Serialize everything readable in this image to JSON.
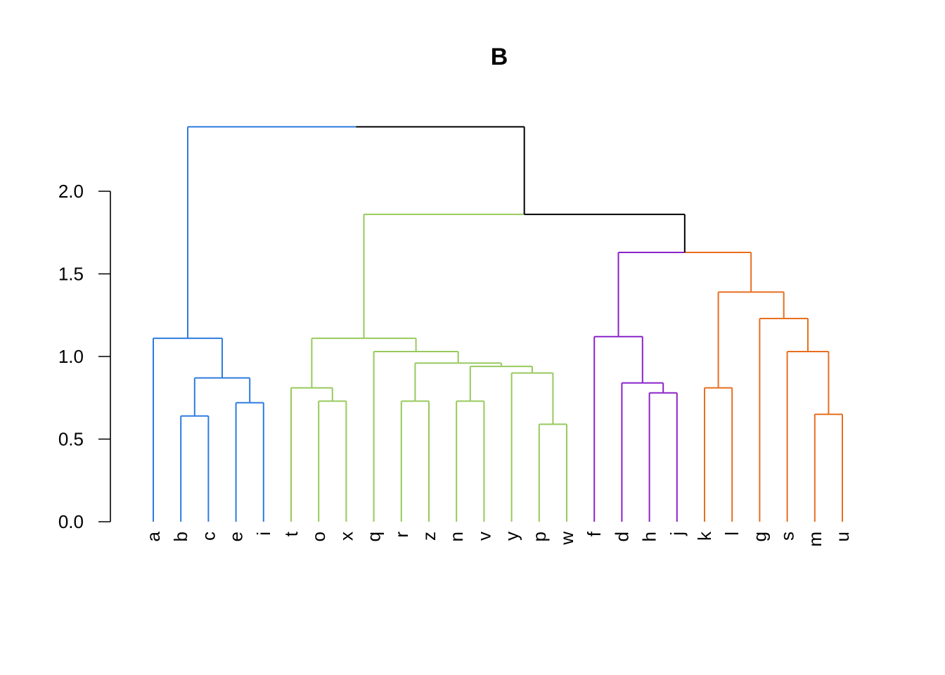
{
  "chart_data": {
    "type": "dendrogram",
    "title": "B",
    "xlabel": "",
    "ylabel": "",
    "ylim": [
      0,
      2.4
    ],
    "yticks": [
      0.0,
      0.5,
      1.0,
      1.5,
      2.0
    ],
    "ytick_labels": [
      "0.0",
      "0.5",
      "1.0",
      "1.5",
      "2.0"
    ],
    "leaves": [
      "a",
      "b",
      "c",
      "e",
      "i",
      "t",
      "o",
      "x",
      "q",
      "r",
      "z",
      "n",
      "v",
      "y",
      "p",
      "w",
      "f",
      "d",
      "h",
      "j",
      "k",
      "l",
      "g",
      "s",
      "m",
      "u"
    ],
    "colors": {
      "blue": "#2E7BE0",
      "green": "#98C95C",
      "purple": "#8A23C9",
      "orange": "#E86E1E",
      "root": "#000000"
    },
    "merges": [
      {
        "id": "n1",
        "left": "b",
        "right": "c",
        "height": 0.64,
        "color": "blue"
      },
      {
        "id": "n2",
        "left": "e",
        "right": "i",
        "height": 0.72,
        "color": "blue"
      },
      {
        "id": "n3",
        "left": "n1",
        "right": "n2",
        "height": 0.87,
        "color": "blue"
      },
      {
        "id": "n4",
        "left": "a",
        "right": "n3",
        "height": 1.11,
        "color": "blue"
      },
      {
        "id": "n5",
        "left": "o",
        "right": "x",
        "height": 0.73,
        "color": "green"
      },
      {
        "id": "n6",
        "left": "t",
        "right": "n5",
        "height": 0.81,
        "color": "green"
      },
      {
        "id": "n7",
        "left": "r",
        "right": "z",
        "height": 0.73,
        "color": "green"
      },
      {
        "id": "n8",
        "left": "n",
        "right": "v",
        "height": 0.73,
        "color": "green"
      },
      {
        "id": "n9",
        "left": "p",
        "right": "w",
        "height": 0.59,
        "color": "green"
      },
      {
        "id": "n10",
        "left": "y",
        "right": "n9",
        "height": 0.9,
        "color": "green"
      },
      {
        "id": "n11",
        "left": "n8",
        "right": "n10",
        "height": 0.94,
        "color": "green"
      },
      {
        "id": "n12",
        "left": "n7",
        "right": "n11",
        "height": 0.96,
        "color": "green"
      },
      {
        "id": "n13",
        "left": "q",
        "right": "n12",
        "height": 1.03,
        "color": "green"
      },
      {
        "id": "n14",
        "left": "n6",
        "right": "n13",
        "height": 1.11,
        "color": "green"
      },
      {
        "id": "n15",
        "left": "h",
        "right": "j",
        "height": 0.78,
        "color": "purple"
      },
      {
        "id": "n16",
        "left": "d",
        "right": "n15",
        "height": 0.84,
        "color": "purple"
      },
      {
        "id": "n17",
        "left": "f",
        "right": "n16",
        "height": 1.12,
        "color": "purple"
      },
      {
        "id": "n18",
        "left": "k",
        "right": "l",
        "height": 0.81,
        "color": "orange"
      },
      {
        "id": "n19",
        "left": "m",
        "right": "u",
        "height": 0.65,
        "color": "orange"
      },
      {
        "id": "n20",
        "left": "s",
        "right": "n19",
        "height": 1.03,
        "color": "orange"
      },
      {
        "id": "n21",
        "left": "g",
        "right": "n20",
        "height": 1.23,
        "color": "orange"
      },
      {
        "id": "n22",
        "left": "n18",
        "right": "n21",
        "height": 1.39,
        "color": "orange"
      },
      {
        "id": "n23",
        "left": "n17",
        "right": "n22",
        "height": 1.63,
        "color": "mixed-purple-orange"
      },
      {
        "id": "n24",
        "left": "n14",
        "right": "n23",
        "height": 1.86,
        "color": "mixed-green-root"
      },
      {
        "id": "n25",
        "left": "n4",
        "right": "n24",
        "height": 2.39,
        "color": "mixed-blue-root"
      }
    ]
  }
}
